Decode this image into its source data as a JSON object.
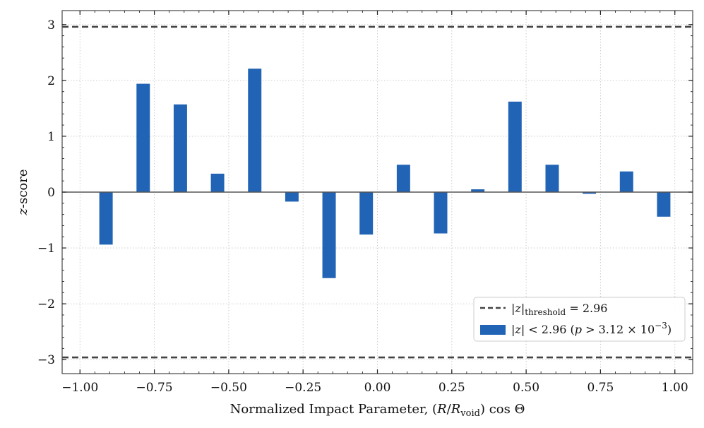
{
  "chart_data": {
    "type": "bar",
    "title": "",
    "xlabel": "Normalized Impact Parameter, (R/R_void) cos Θ",
    "ylabel": "z-score",
    "xlim": [
      -1.06,
      1.06
    ],
    "ylim": [
      -3.25,
      3.25
    ],
    "xticks": [
      -1.0,
      -0.75,
      -0.5,
      -0.25,
      0.0,
      0.25,
      0.5,
      0.75,
      1.0
    ],
    "xtick_labels": [
      "−1.00",
      "−0.75",
      "−0.50",
      "−0.25",
      "0.00",
      "0.25",
      "0.50",
      "0.75",
      "1.00"
    ],
    "yticks": [
      -3,
      -2,
      -1,
      0,
      1,
      2,
      3
    ],
    "ytick_labels": [
      "−3",
      "−2",
      "−1",
      "0",
      "1",
      "2",
      "3"
    ],
    "grid": true,
    "bar_width": 0.045,
    "bar_color": "#2163b5",
    "x": [
      -0.9125,
      -0.7875,
      -0.6625,
      -0.5375,
      -0.4125,
      -0.2875,
      -0.1625,
      -0.0375,
      0.0875,
      0.2125,
      0.3375,
      0.4625,
      0.5875,
      0.7125,
      0.8375,
      0.9625
    ],
    "values": [
      -0.94,
      1.94,
      1.57,
      0.33,
      2.21,
      -0.17,
      -1.54,
      -0.76,
      0.49,
      -0.74,
      0.05,
      1.62,
      0.49,
      -0.03,
      0.37,
      -0.44
    ],
    "threshold": 2.96,
    "threshold_color": "#444444",
    "zero_line_color": "#555555",
    "legend": {
      "placement": "lower-right",
      "entries": [
        {
          "kind": "dashed-line",
          "label": "|z|_threshold = 2.96"
        },
        {
          "kind": "bar",
          "label": "|z| < 2.96 (p > 3.12 × 10^−3)"
        }
      ]
    }
  }
}
